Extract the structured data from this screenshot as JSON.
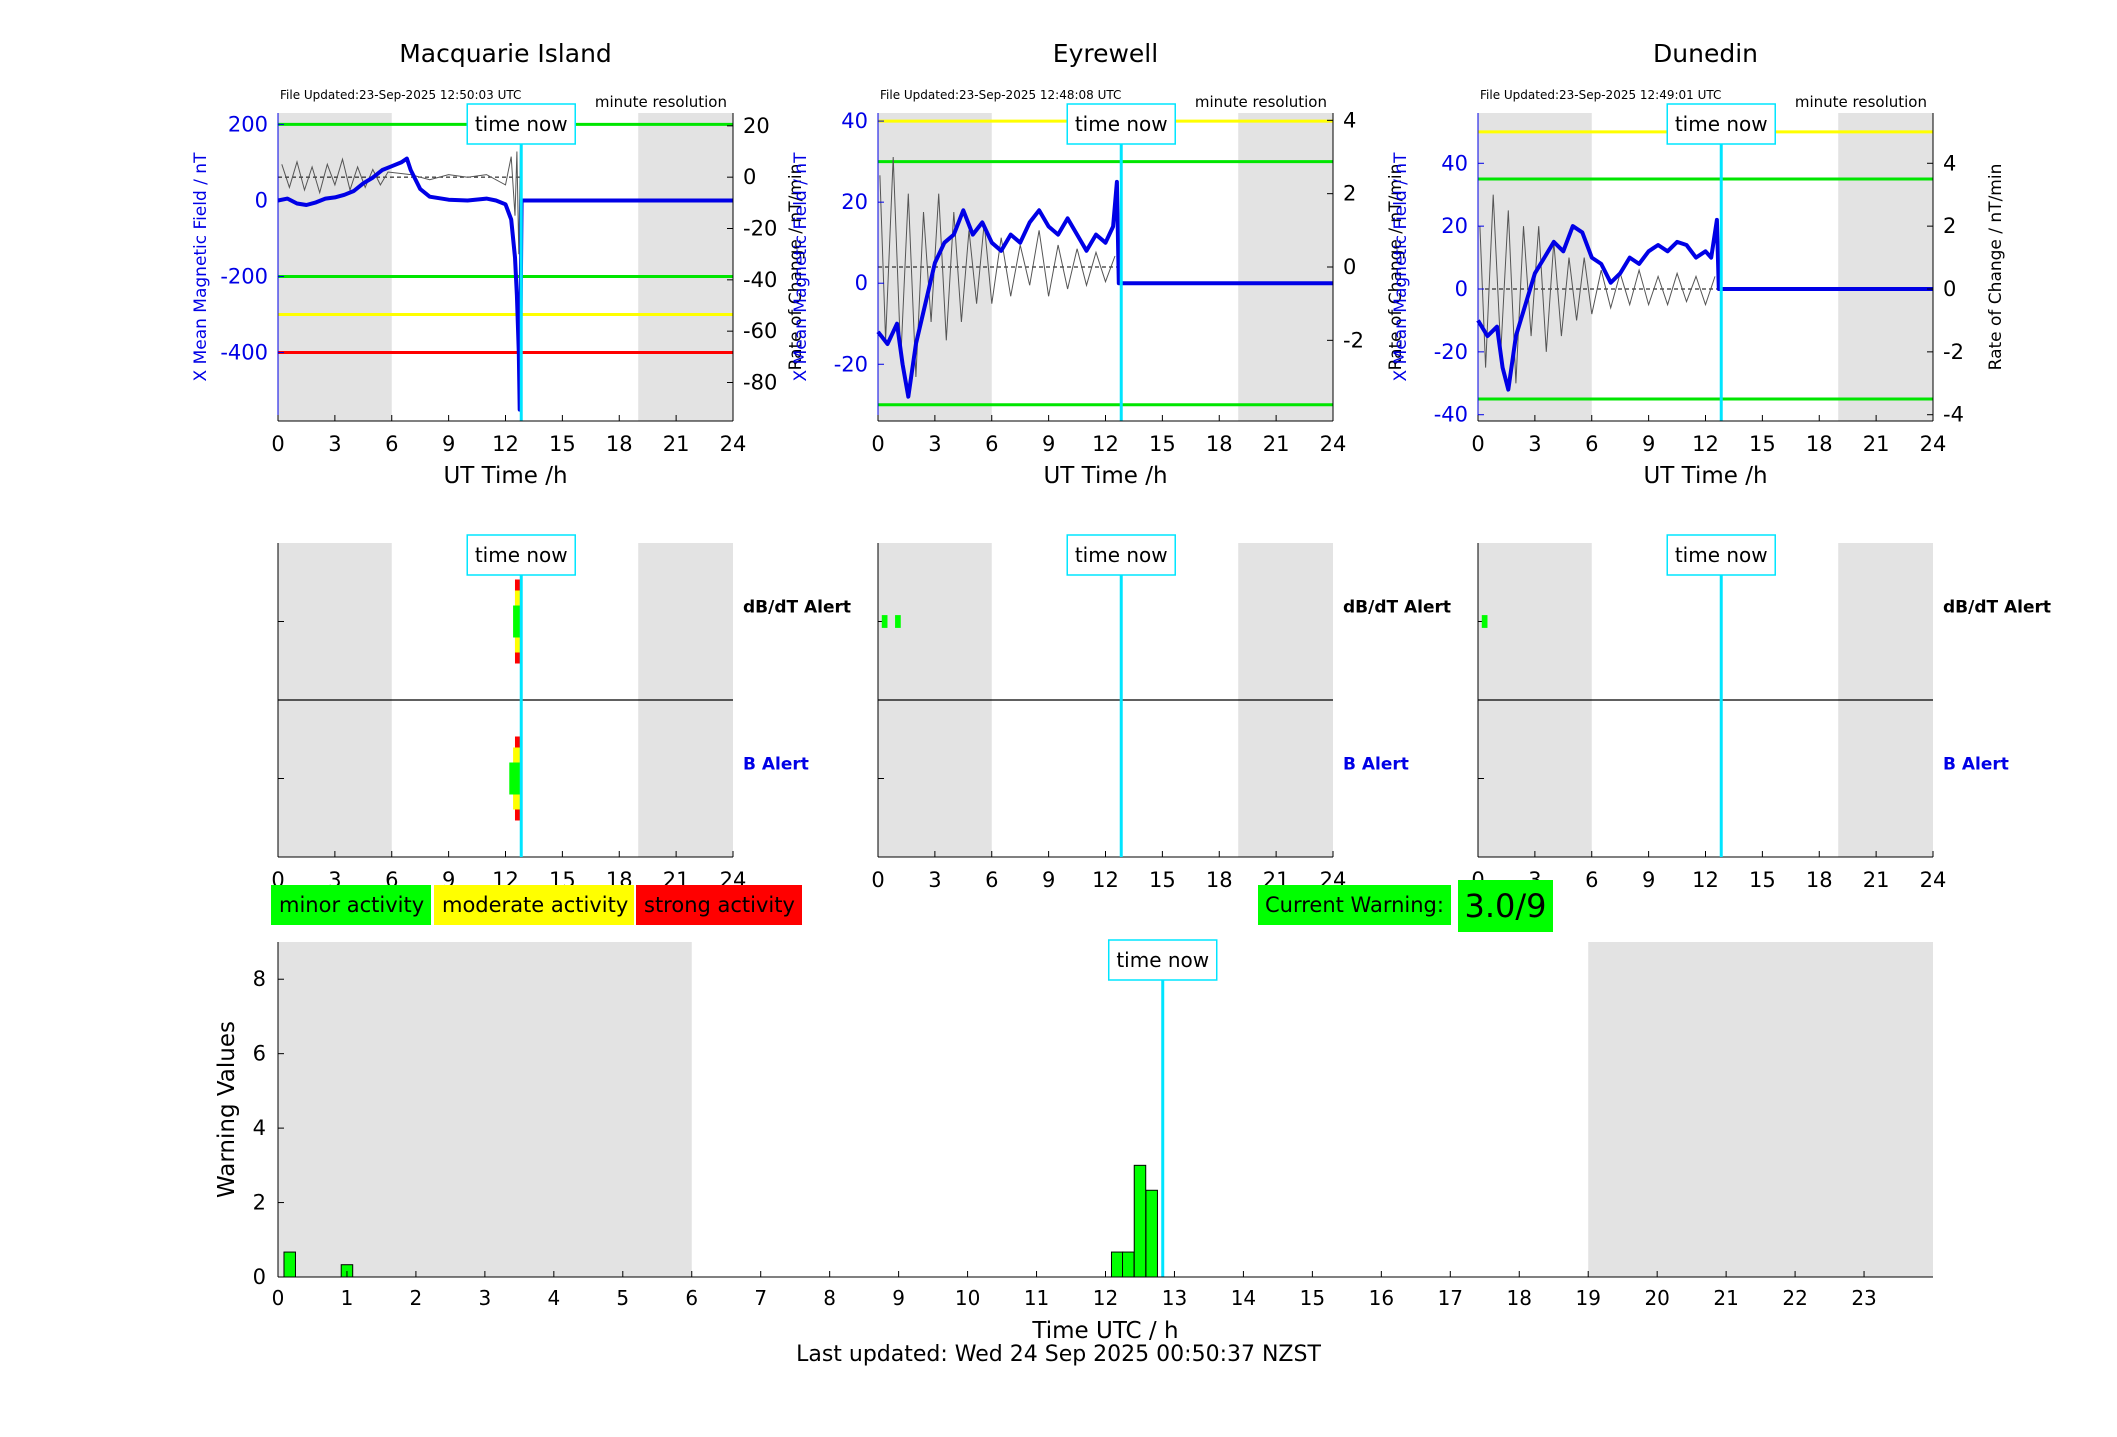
{
  "footer": "Last updated: Wed 24 Sep 2025 00:50:37 NZST",
  "colors": {
    "bg_shade": "#e3e3e3",
    "field_line": "#0000e6",
    "rate_line": "#555555",
    "now_line": "#00e5ff",
    "minor": "#00ff00",
    "moderate": "#ffff00",
    "strong": "#ff0000"
  },
  "legend": {
    "minor": "minor activity",
    "moderate": "moderate activity",
    "strong": "strong activity"
  },
  "current_warning": {
    "label": "Current Warning:",
    "value": "3.0/9"
  },
  "chart_data": [
    {
      "type": "line",
      "title": "Macquarie Island",
      "file_updated": "File Updated:23-Sep-2025 12:50:03 UTC",
      "resolution": "minute resolution",
      "time_now_label": "time now",
      "now_h": 12.83,
      "xlabel": "UT Time /h",
      "xticks": [
        0,
        3,
        6,
        9,
        12,
        15,
        18,
        21,
        24
      ],
      "xlim": [
        0,
        24
      ],
      "shade": [
        [
          0,
          6
        ],
        [
          19,
          24
        ]
      ],
      "ylabel_left": "X Mean Magnetic Field / nT",
      "ylim_left": [
        -580,
        230
      ],
      "yticks_left": [
        200,
        0,
        -200,
        -400
      ],
      "ylabel_right": "Rate of Change / nT/min",
      "ylim_right": [
        -95,
        25
      ],
      "yticks_right": [
        20,
        0,
        -20,
        -40,
        -60,
        -80
      ],
      "thresholds": [
        {
          "value": 200,
          "color": "green"
        },
        {
          "value": -200,
          "color": "green"
        },
        {
          "value": -300,
          "color": "yellow"
        },
        {
          "value": -400,
          "color": "red"
        }
      ],
      "field_series": [
        {
          "x": 0,
          "y": 0
        },
        {
          "x": 0.5,
          "y": 5
        },
        {
          "x": 1,
          "y": -8
        },
        {
          "x": 1.5,
          "y": -12
        },
        {
          "x": 2,
          "y": -5
        },
        {
          "x": 2.5,
          "y": 5
        },
        {
          "x": 3,
          "y": 8
        },
        {
          "x": 3.5,
          "y": 15
        },
        {
          "x": 4,
          "y": 25
        },
        {
          "x": 4.5,
          "y": 45
        },
        {
          "x": 5,
          "y": 60
        },
        {
          "x": 5.5,
          "y": 80
        },
        {
          "x": 6,
          "y": 90
        },
        {
          "x": 6.5,
          "y": 100
        },
        {
          "x": 6.8,
          "y": 110
        },
        {
          "x": 7,
          "y": 80
        },
        {
          "x": 7.5,
          "y": 30
        },
        {
          "x": 8,
          "y": 10
        },
        {
          "x": 9,
          "y": 2
        },
        {
          "x": 10,
          "y": 0
        },
        {
          "x": 11,
          "y": 5
        },
        {
          "x": 11.5,
          "y": 0
        },
        {
          "x": 12,
          "y": -10
        },
        {
          "x": 12.3,
          "y": -50
        },
        {
          "x": 12.5,
          "y": -150
        },
        {
          "x": 12.6,
          "y": -250
        },
        {
          "x": 12.7,
          "y": -400
        },
        {
          "x": 12.75,
          "y": -550
        },
        {
          "x": 12.85,
          "y": 0
        },
        {
          "x": 24,
          "y": 0
        }
      ],
      "rate_series": [
        {
          "x": 0.2,
          "y": 5
        },
        {
          "x": 0.6,
          "y": -4
        },
        {
          "x": 1,
          "y": 6
        },
        {
          "x": 1.4,
          "y": -5
        },
        {
          "x": 1.8,
          "y": 4
        },
        {
          "x": 2.2,
          "y": -6
        },
        {
          "x": 2.6,
          "y": 5
        },
        {
          "x": 3,
          "y": -3
        },
        {
          "x": 3.4,
          "y": 7
        },
        {
          "x": 3.8,
          "y": -5
        },
        {
          "x": 4.2,
          "y": 4
        },
        {
          "x": 4.6,
          "y": -4
        },
        {
          "x": 5,
          "y": 3
        },
        {
          "x": 5.4,
          "y": -3
        },
        {
          "x": 5.8,
          "y": 2
        },
        {
          "x": 7,
          "y": 1
        },
        {
          "x": 8,
          "y": -1
        },
        {
          "x": 9,
          "y": 1
        },
        {
          "x": 10,
          "y": 0
        },
        {
          "x": 11,
          "y": 1
        },
        {
          "x": 12,
          "y": -3
        },
        {
          "x": 12.3,
          "y": 8
        },
        {
          "x": 12.5,
          "y": -15
        },
        {
          "x": 12.6,
          "y": 10
        },
        {
          "x": 12.7,
          "y": -30
        },
        {
          "x": 12.8,
          "y": 18
        }
      ],
      "alerts": {
        "dbdt_label": "dB/dT Alert",
        "b_label": "B Alert",
        "dbdt": [
          {
            "x0": 12.5,
            "x1": 12.8,
            "level": "strong"
          },
          {
            "x0": 12.5,
            "x1": 12.8,
            "level": "moderate"
          },
          {
            "x0": 12.4,
            "x1": 12.8,
            "level": "minor"
          }
        ],
        "b": [
          {
            "x0": 12.5,
            "x1": 12.8,
            "level": "strong"
          },
          {
            "x0": 12.4,
            "x1": 12.8,
            "level": "moderate"
          },
          {
            "x0": 12.2,
            "x1": 12.8,
            "level": "minor"
          }
        ]
      },
      "alert_xticks": [
        0,
        3,
        6,
        9,
        12,
        15,
        18,
        21,
        24
      ]
    },
    {
      "type": "line",
      "title": "Eyrewell",
      "file_updated": "File Updated:23-Sep-2025 12:48:08 UTC",
      "resolution": "minute resolution",
      "time_now_label": "time now",
      "now_h": 12.83,
      "xlabel": "UT Time /h",
      "xticks": [
        0,
        3,
        6,
        9,
        12,
        15,
        18,
        21,
        24
      ],
      "xlim": [
        0,
        24
      ],
      "shade": [
        [
          0,
          6
        ],
        [
          19,
          24
        ]
      ],
      "ylabel_left": "X Mean Magnetic Field / nT",
      "ylim_left": [
        -34,
        42
      ],
      "yticks_left": [
        40,
        20,
        0,
        -20
      ],
      "ylabel_right": "Rate of Change / nT/min",
      "ylim_right": [
        -4.2,
        4.2
      ],
      "yticks_right": [
        4,
        2,
        0,
        -2
      ],
      "thresholds": [
        {
          "value": 40,
          "color": "yellow"
        },
        {
          "value": 30,
          "color": "green"
        },
        {
          "value": -30,
          "color": "green"
        }
      ],
      "field_series": [
        {
          "x": 0,
          "y": -12
        },
        {
          "x": 0.5,
          "y": -15
        },
        {
          "x": 1,
          "y": -10
        },
        {
          "x": 1.3,
          "y": -20
        },
        {
          "x": 1.6,
          "y": -28
        },
        {
          "x": 2,
          "y": -15
        },
        {
          "x": 2.5,
          "y": -5
        },
        {
          "x": 3,
          "y": 5
        },
        {
          "x": 3.5,
          "y": 10
        },
        {
          "x": 4,
          "y": 12
        },
        {
          "x": 4.5,
          "y": 18
        },
        {
          "x": 5,
          "y": 12
        },
        {
          "x": 5.5,
          "y": 15
        },
        {
          "x": 6,
          "y": 10
        },
        {
          "x": 6.5,
          "y": 8
        },
        {
          "x": 7,
          "y": 12
        },
        {
          "x": 7.5,
          "y": 10
        },
        {
          "x": 8,
          "y": 15
        },
        {
          "x": 8.5,
          "y": 18
        },
        {
          "x": 9,
          "y": 14
        },
        {
          "x": 9.5,
          "y": 12
        },
        {
          "x": 10,
          "y": 16
        },
        {
          "x": 10.5,
          "y": 12
        },
        {
          "x": 11,
          "y": 8
        },
        {
          "x": 11.5,
          "y": 12
        },
        {
          "x": 12,
          "y": 10
        },
        {
          "x": 12.4,
          "y": 14
        },
        {
          "x": 12.6,
          "y": 25
        },
        {
          "x": 12.7,
          "y": 0
        },
        {
          "x": 24,
          "y": 0
        }
      ],
      "rate_series": [
        {
          "x": 0.1,
          "y": 2.5
        },
        {
          "x": 0.4,
          "y": -2
        },
        {
          "x": 0.8,
          "y": 3
        },
        {
          "x": 1.2,
          "y": -2.5
        },
        {
          "x": 1.6,
          "y": 2
        },
        {
          "x": 2,
          "y": -3
        },
        {
          "x": 2.4,
          "y": 1.5
        },
        {
          "x": 2.8,
          "y": -1.5
        },
        {
          "x": 3.2,
          "y": 2
        },
        {
          "x": 3.6,
          "y": -2
        },
        {
          "x": 4,
          "y": 1.5
        },
        {
          "x": 4.4,
          "y": -1.5
        },
        {
          "x": 4.8,
          "y": 1
        },
        {
          "x": 5.2,
          "y": -1
        },
        {
          "x": 5.6,
          "y": 1.2
        },
        {
          "x": 6,
          "y": -1
        },
        {
          "x": 6.5,
          "y": 0.8
        },
        {
          "x": 7,
          "y": -0.8
        },
        {
          "x": 7.5,
          "y": 0.6
        },
        {
          "x": 8,
          "y": -0.5
        },
        {
          "x": 8.5,
          "y": 1
        },
        {
          "x": 9,
          "y": -0.8
        },
        {
          "x": 9.5,
          "y": 0.6
        },
        {
          "x": 10,
          "y": -0.6
        },
        {
          "x": 10.5,
          "y": 0.5
        },
        {
          "x": 11,
          "y": -0.5
        },
        {
          "x": 11.5,
          "y": 0.4
        },
        {
          "x": 12,
          "y": -0.4
        },
        {
          "x": 12.5,
          "y": 0.3
        }
      ],
      "alerts": {
        "dbdt_label": "dB/dT Alert",
        "b_label": "B Alert",
        "dbdt": [
          {
            "x0": 0.2,
            "x1": 0.5,
            "level": "minor"
          },
          {
            "x0": 0.9,
            "x1": 1.2,
            "level": "minor"
          }
        ],
        "b": []
      },
      "alert_xticks": [
        0,
        3,
        6,
        9,
        12,
        15,
        18,
        21,
        24
      ]
    },
    {
      "type": "line",
      "title": "Dunedin",
      "file_updated": "File Updated:23-Sep-2025 12:49:01 UTC",
      "resolution": "minute resolution",
      "time_now_label": "time now",
      "now_h": 12.83,
      "xlabel": "UT Time /h",
      "xticks": [
        0,
        3,
        6,
        9,
        12,
        15,
        18,
        21,
        24
      ],
      "xlim": [
        0,
        24
      ],
      "shade": [
        [
          0,
          6
        ],
        [
          19,
          24
        ]
      ],
      "ylabel_left": "X Mean Magnetic Field / nT",
      "ylim_left": [
        -42,
        56
      ],
      "yticks_left": [
        40,
        20,
        0,
        -20,
        -40
      ],
      "ylabel_right": "Rate of Change / nT/min",
      "ylim_right": [
        -4.2,
        5.6
      ],
      "yticks_right": [
        4,
        2,
        0,
        -2,
        -4
      ],
      "thresholds": [
        {
          "value": 50,
          "color": "yellow"
        },
        {
          "value": 35,
          "color": "green"
        },
        {
          "value": -35,
          "color": "green"
        }
      ],
      "field_series": [
        {
          "x": 0,
          "y": -10
        },
        {
          "x": 0.5,
          "y": -15
        },
        {
          "x": 1,
          "y": -12
        },
        {
          "x": 1.3,
          "y": -25
        },
        {
          "x": 1.6,
          "y": -32
        },
        {
          "x": 2,
          "y": -15
        },
        {
          "x": 2.5,
          "y": -5
        },
        {
          "x": 3,
          "y": 5
        },
        {
          "x": 3.5,
          "y": 10
        },
        {
          "x": 4,
          "y": 15
        },
        {
          "x": 4.5,
          "y": 12
        },
        {
          "x": 5,
          "y": 20
        },
        {
          "x": 5.5,
          "y": 18
        },
        {
          "x": 6,
          "y": 10
        },
        {
          "x": 6.5,
          "y": 8
        },
        {
          "x": 7,
          "y": 2
        },
        {
          "x": 7.5,
          "y": 5
        },
        {
          "x": 8,
          "y": 10
        },
        {
          "x": 8.5,
          "y": 8
        },
        {
          "x": 9,
          "y": 12
        },
        {
          "x": 9.5,
          "y": 14
        },
        {
          "x": 10,
          "y": 12
        },
        {
          "x": 10.5,
          "y": 15
        },
        {
          "x": 11,
          "y": 14
        },
        {
          "x": 11.5,
          "y": 10
        },
        {
          "x": 12,
          "y": 12
        },
        {
          "x": 12.3,
          "y": 10
        },
        {
          "x": 12.6,
          "y": 22
        },
        {
          "x": 12.7,
          "y": 0
        },
        {
          "x": 24,
          "y": 0
        }
      ],
      "rate_series": [
        {
          "x": 0.1,
          "y": 2
        },
        {
          "x": 0.4,
          "y": -2.5
        },
        {
          "x": 0.8,
          "y": 3
        },
        {
          "x": 1.2,
          "y": -2
        },
        {
          "x": 1.6,
          "y": 2.5
        },
        {
          "x": 2,
          "y": -3
        },
        {
          "x": 2.4,
          "y": 2
        },
        {
          "x": 2.8,
          "y": -1.5
        },
        {
          "x": 3.2,
          "y": 2
        },
        {
          "x": 3.6,
          "y": -2
        },
        {
          "x": 4,
          "y": 1.5
        },
        {
          "x": 4.4,
          "y": -1.5
        },
        {
          "x": 4.8,
          "y": 1
        },
        {
          "x": 5.2,
          "y": -1
        },
        {
          "x": 5.6,
          "y": 1
        },
        {
          "x": 6,
          "y": -0.8
        },
        {
          "x": 6.5,
          "y": 0.6
        },
        {
          "x": 7,
          "y": -0.6
        },
        {
          "x": 7.5,
          "y": 0.5
        },
        {
          "x": 8,
          "y": -0.5
        },
        {
          "x": 8.5,
          "y": 0.6
        },
        {
          "x": 9,
          "y": -0.5
        },
        {
          "x": 9.5,
          "y": 0.4
        },
        {
          "x": 10,
          "y": -0.5
        },
        {
          "x": 10.5,
          "y": 0.5
        },
        {
          "x": 11,
          "y": -0.4
        },
        {
          "x": 11.5,
          "y": 0.4
        },
        {
          "x": 12,
          "y": -0.5
        },
        {
          "x": 12.5,
          "y": 0.4
        }
      ],
      "alerts": {
        "dbdt_label": "dB/dT Alert",
        "b_label": "B Alert",
        "dbdt": [
          {
            "x0": 0.2,
            "x1": 0.5,
            "level": "minor"
          }
        ],
        "b": []
      },
      "alert_xticks": [
        0,
        3,
        6,
        9,
        12,
        15,
        18,
        21,
        24
      ]
    },
    {
      "type": "bar",
      "title": "",
      "time_now_label": "time now",
      "now_h": 12.83,
      "xlabel": "Time UTC / h",
      "ylabel": "Warning Values",
      "xlim": [
        0,
        24
      ],
      "ylim": [
        0,
        9
      ],
      "xticks": [
        0,
        1,
        2,
        3,
        4,
        5,
        6,
        7,
        8,
        9,
        10,
        11,
        12,
        13,
        14,
        15,
        16,
        17,
        18,
        19,
        20,
        21,
        22,
        23
      ],
      "yticks": [
        0,
        2,
        4,
        6,
        8
      ],
      "shade": [
        [
          0,
          6
        ],
        [
          19,
          24
        ]
      ],
      "bars": [
        {
          "x": 0.17,
          "value": 0.67
        },
        {
          "x": 1.0,
          "value": 0.33
        },
        {
          "x": 12.17,
          "value": 0.67
        },
        {
          "x": 12.33,
          "value": 0.67
        },
        {
          "x": 12.5,
          "value": 3.0
        },
        {
          "x": 12.67,
          "value": 2.33
        }
      ]
    }
  ]
}
